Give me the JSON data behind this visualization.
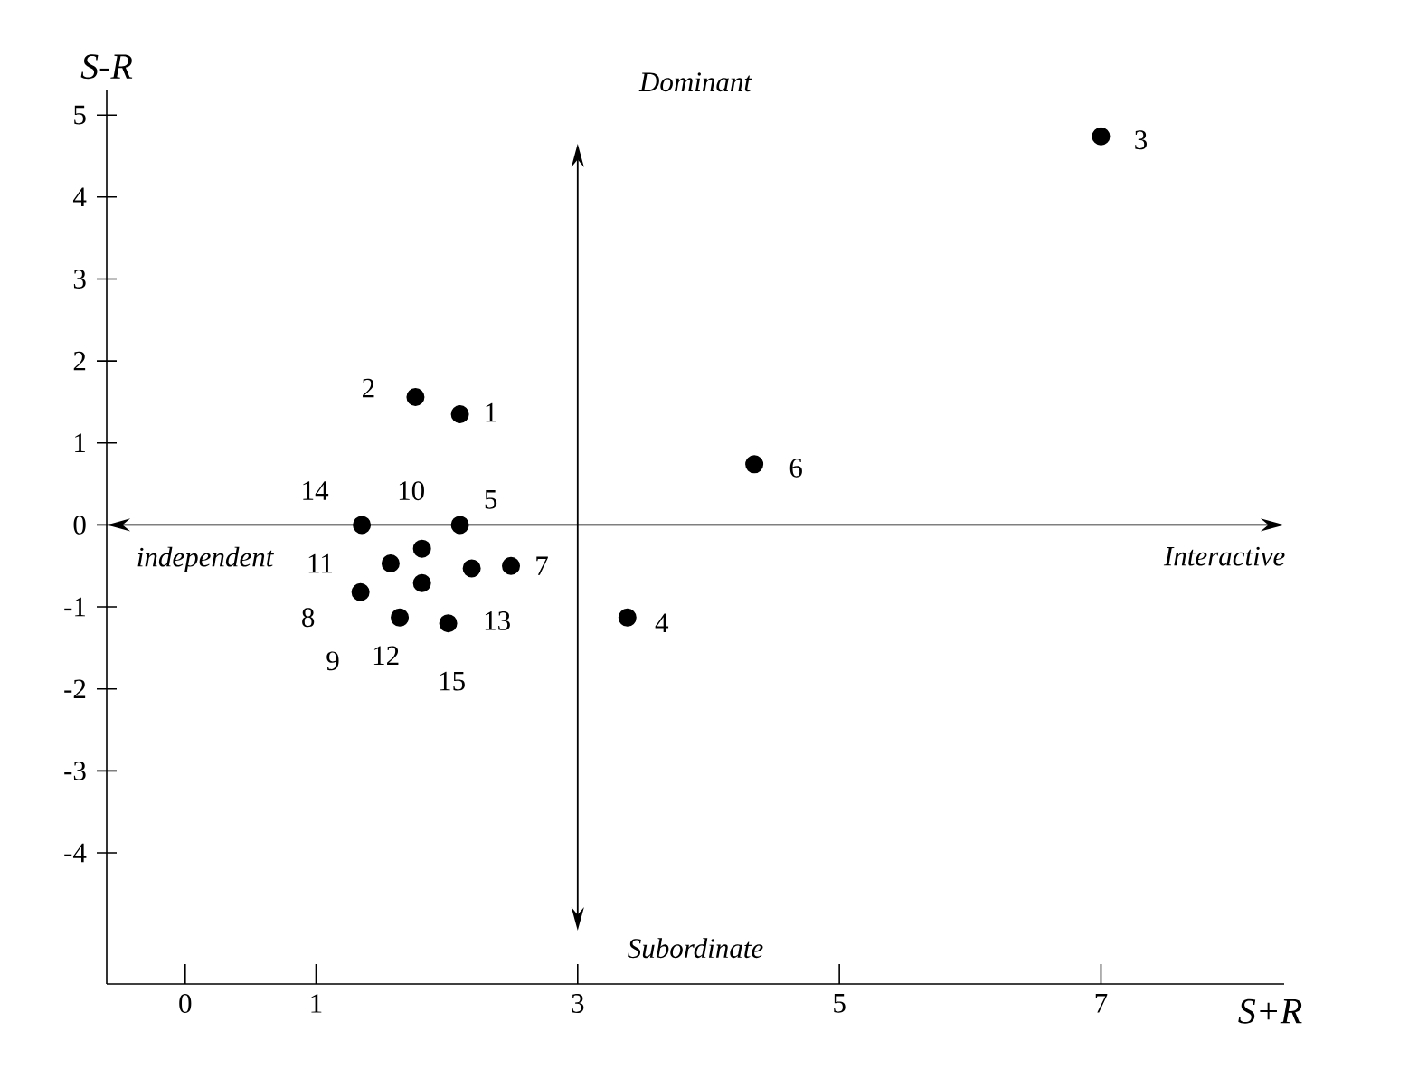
{
  "chart_data": {
    "type": "scatter",
    "xlabel": "S+R",
    "ylabel": "S-R",
    "x": [
      2.1,
      1.76,
      7.0,
      3.38,
      2.1,
      4.35,
      2.49,
      1.34,
      1.64,
      1.81,
      1.57,
      1.81,
      2.19,
      1.35,
      2.01
    ],
    "values": [
      1.35,
      1.56,
      4.74,
      -1.13,
      0.0,
      0.74,
      -0.5,
      -0.82,
      -1.13,
      -0.29,
      -0.47,
      -0.71,
      -0.53,
      0.0,
      -1.2
    ],
    "color": "#000000",
    "marker": "circle",
    "xlim": [
      -0.6,
      8.4
    ],
    "ylim": [
      -5.6,
      5.3
    ],
    "xticks": [
      0,
      1,
      3,
      5,
      7
    ],
    "yticks": [
      -4,
      -3,
      -2,
      -1,
      0,
      1,
      2,
      3,
      4,
      5
    ],
    "grid": false,
    "ref_lines": [
      {
        "axis": "y",
        "value": 0
      },
      {
        "axis": "x",
        "value": 3
      }
    ],
    "annotations": [
      "Dominant",
      "Subordinate",
      "independent",
      "Interactive",
      {
        "text": "1",
        "x": 2.1,
        "y": 1.35
      },
      {
        "text": "2",
        "x": 1.76,
        "y": 1.56
      },
      {
        "text": "3",
        "x": 7.0,
        "y": 4.74
      },
      {
        "text": "4",
        "x": 3.38,
        "y": -1.13
      },
      {
        "text": "5",
        "x": 2.1,
        "y": 0.0
      },
      {
        "text": "6",
        "x": 4.35,
        "y": 0.74
      },
      {
        "text": "7",
        "x": 2.49,
        "y": -0.5
      },
      {
        "text": "8",
        "x": 1.34,
        "y": -0.82
      },
      {
        "text": "9",
        "x": 1.64,
        "y": -1.13
      },
      {
        "text": "10",
        "x": 1.81,
        "y": -0.29
      },
      {
        "text": "11",
        "x": 1.57,
        "y": -0.47
      },
      {
        "text": "12",
        "x": 1.81,
        "y": -0.71
      },
      {
        "text": "13",
        "x": 2.19,
        "y": -0.53
      },
      {
        "text": "14",
        "x": 1.35,
        "y": 0.0
      },
      {
        "text": "15",
        "x": 2.01,
        "y": -1.2
      }
    ]
  }
}
